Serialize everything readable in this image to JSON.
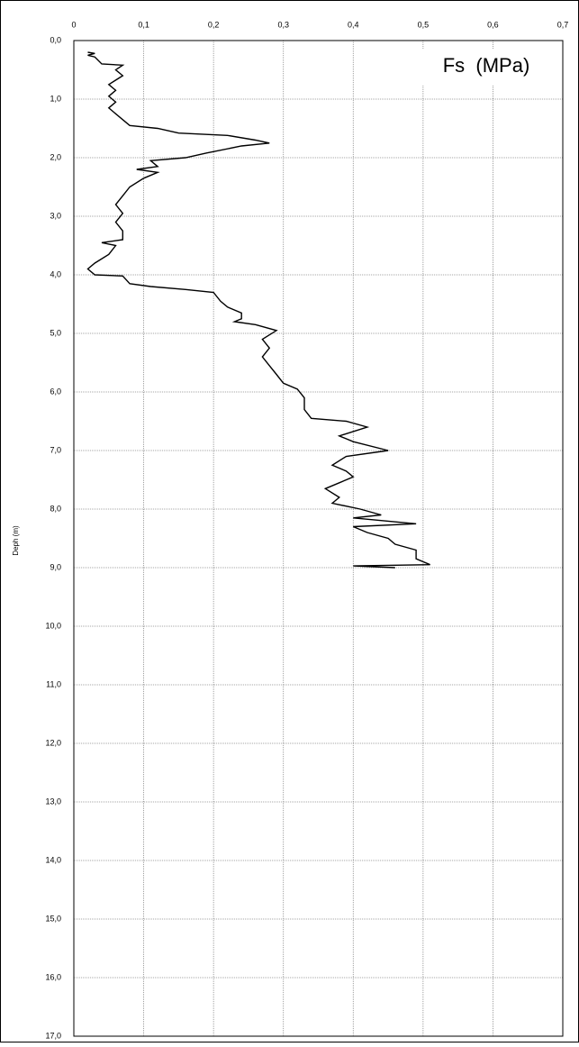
{
  "chart_data": {
    "type": "line",
    "annotation": "Fs  (MPa)",
    "y_label": "Deph (m)",
    "x": [
      0.2,
      0.22,
      0.25,
      0.28,
      0.4,
      0.42,
      0.5,
      0.6,
      0.75,
      0.85,
      0.95,
      1.05,
      1.15,
      1.25,
      1.35,
      1.45,
      1.5,
      1.58,
      1.62,
      1.7,
      1.75,
      1.8,
      1.92,
      2.0,
      2.05,
      2.15,
      2.2,
      2.25,
      2.35,
      2.5,
      2.65,
      2.8,
      2.95,
      3.1,
      3.25,
      3.4,
      3.45,
      3.5,
      3.65,
      3.8,
      3.9,
      4.0,
      4.02,
      4.15,
      4.2,
      4.25,
      4.3,
      4.45,
      4.55,
      4.65,
      4.75,
      4.8,
      4.85,
      4.95,
      5.1,
      5.25,
      5.4,
      5.55,
      5.7,
      5.85,
      5.95,
      6.1,
      6.3,
      6.45,
      6.5,
      6.6,
      6.75,
      6.85,
      7.0,
      7.1,
      7.25,
      7.35,
      7.45,
      7.55,
      7.65,
      7.8,
      7.9,
      8.0,
      8.1,
      8.15,
      8.25,
      8.3,
      8.4,
      8.5,
      8.6,
      8.7,
      8.85,
      8.95,
      8.97,
      9.0
    ],
    "series": [
      {
        "color": "#000000",
        "values": [
          0.02,
          0.03,
          0.02,
          0.03,
          0.04,
          0.07,
          0.06,
          0.07,
          0.05,
          0.06,
          0.05,
          0.06,
          0.05,
          0.06,
          0.07,
          0.08,
          0.12,
          0.15,
          0.22,
          0.26,
          0.28,
          0.24,
          0.19,
          0.16,
          0.11,
          0.12,
          0.09,
          0.12,
          0.1,
          0.08,
          0.07,
          0.06,
          0.07,
          0.06,
          0.07,
          0.07,
          0.04,
          0.06,
          0.05,
          0.03,
          0.02,
          0.03,
          0.07,
          0.08,
          0.11,
          0.16,
          0.2,
          0.21,
          0.22,
          0.24,
          0.24,
          0.23,
          0.26,
          0.29,
          0.27,
          0.28,
          0.27,
          0.28,
          0.29,
          0.3,
          0.32,
          0.33,
          0.33,
          0.34,
          0.39,
          0.42,
          0.38,
          0.4,
          0.45,
          0.39,
          0.37,
          0.39,
          0.4,
          0.38,
          0.36,
          0.38,
          0.37,
          0.41,
          0.44,
          0.4,
          0.49,
          0.4,
          0.42,
          0.45,
          0.46,
          0.49,
          0.49,
          0.51,
          0.4,
          0.46
        ]
      }
    ],
    "xlim": [
      0,
      0.7
    ],
    "xticks": [
      0,
      {
        "value": 0.1,
        "label": "0,1"
      },
      {
        "value": 0.2,
        "label": "0,2"
      },
      {
        "value": 0.3,
        "label": "0,3"
      },
      {
        "value": 0.4,
        "label": "0,4"
      },
      {
        "value": 0.5,
        "label": "0,5"
      },
      {
        "value": 0.6,
        "label": "0,6"
      },
      {
        "value": 0.7,
        "label": "0,7"
      }
    ],
    "ylim": [
      0,
      17
    ],
    "yticks": [
      {
        "value": 0,
        "label": "0,0"
      },
      {
        "value": 1,
        "label": "1,0"
      },
      {
        "value": 2,
        "label": "2,0"
      },
      {
        "value": 3,
        "label": "3,0"
      },
      {
        "value": 4,
        "label": "4,0"
      },
      {
        "value": 5,
        "label": "5,0"
      },
      {
        "value": 6,
        "label": "6,0"
      },
      {
        "value": 7,
        "label": "7,0"
      },
      {
        "value": 8,
        "label": "8,0"
      },
      {
        "value": 9,
        "label": "9,0"
      },
      {
        "value": 10,
        "label": "10,0"
      },
      {
        "value": 11,
        "label": "11,0"
      },
      {
        "value": 12,
        "label": "12,0"
      },
      {
        "value": 13,
        "label": "13,0"
      },
      {
        "value": 14,
        "label": "14,0"
      },
      {
        "value": 15,
        "label": "15,0"
      },
      {
        "value": 16,
        "label": "16,0"
      },
      {
        "value": 17,
        "label": "17,0"
      }
    ],
    "grid": true
  }
}
